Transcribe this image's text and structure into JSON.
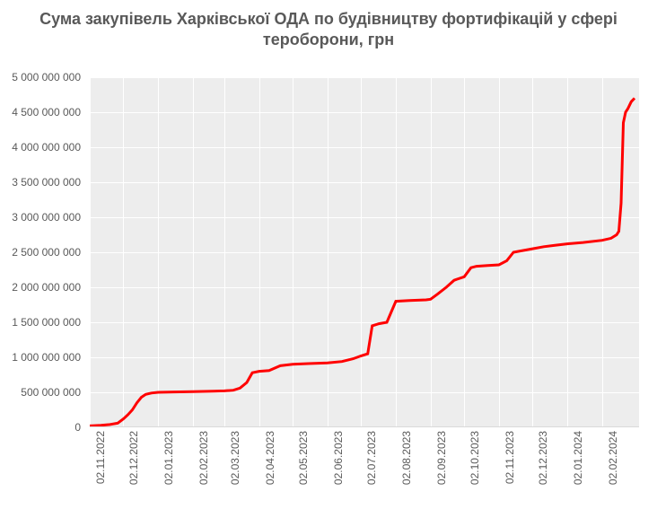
{
  "chart": {
    "type": "line",
    "title": "Сума закупівель Харківської ОДА по будівництву фортифікацій у сфері тероборони, грн",
    "title_fontsize": 18,
    "title_color": "#595959",
    "background_color": "#ffffff",
    "plot_background_color": "#ededed",
    "grid_color": "#ffffff",
    "axis_line_color": "#d9d9d9",
    "tick_label_color": "#595959",
    "tick_label_fontsize": 12,
    "ylim": [
      0,
      5000000000
    ],
    "ytick_step": 500000000,
    "y_ticks": [
      {
        "v": 0,
        "label": "0"
      },
      {
        "v": 500000000,
        "label": "500 000 000"
      },
      {
        "v": 1000000000,
        "label": "1 000 000 000"
      },
      {
        "v": 1500000000,
        "label": "1 500 000 000"
      },
      {
        "v": 2000000000,
        "label": "2 000 000 000"
      },
      {
        "v": 2500000000,
        "label": "2 500 000 000"
      },
      {
        "v": 3000000000,
        "label": "3 000 000 000"
      },
      {
        "v": 3500000000,
        "label": "3 500 000 000"
      },
      {
        "v": 4000000000,
        "label": "4 000 000 000"
      },
      {
        "v": 4500000000,
        "label": "4 500 000 000"
      },
      {
        "v": 5000000000,
        "label": "5 000 000 000"
      }
    ],
    "x_range_days": 490,
    "x_ticks": [
      {
        "pos": 0,
        "label": "02.11.2022"
      },
      {
        "pos": 30,
        "label": "02.12.2022"
      },
      {
        "pos": 61,
        "label": "02.01.2023"
      },
      {
        "pos": 92,
        "label": "02.02.2023"
      },
      {
        "pos": 120,
        "label": "02.03.2023"
      },
      {
        "pos": 151,
        "label": "02.04.2023"
      },
      {
        "pos": 181,
        "label": "02.05.2023"
      },
      {
        "pos": 212,
        "label": "02.06.2023"
      },
      {
        "pos": 242,
        "label": "02.07.2023"
      },
      {
        "pos": 273,
        "label": "02.08.2023"
      },
      {
        "pos": 304,
        "label": "02.09.2023"
      },
      {
        "pos": 334,
        "label": "02.10.2023"
      },
      {
        "pos": 365,
        "label": "02.11.2023"
      },
      {
        "pos": 395,
        "label": "02.12.2023"
      },
      {
        "pos": 426,
        "label": "02.01.2024"
      },
      {
        "pos": 457,
        "label": "02.02.2024"
      }
    ],
    "series": {
      "color": "#ff0000",
      "line_width": 3,
      "points": [
        {
          "x": 0,
          "y": 20000000
        },
        {
          "x": 10,
          "y": 30000000
        },
        {
          "x": 18,
          "y": 40000000
        },
        {
          "x": 25,
          "y": 60000000
        },
        {
          "x": 30,
          "y": 120000000
        },
        {
          "x": 34,
          "y": 180000000
        },
        {
          "x": 38,
          "y": 250000000
        },
        {
          "x": 42,
          "y": 350000000
        },
        {
          "x": 46,
          "y": 430000000
        },
        {
          "x": 50,
          "y": 470000000
        },
        {
          "x": 55,
          "y": 490000000
        },
        {
          "x": 61,
          "y": 500000000
        },
        {
          "x": 75,
          "y": 505000000
        },
        {
          "x": 92,
          "y": 510000000
        },
        {
          "x": 110,
          "y": 515000000
        },
        {
          "x": 120,
          "y": 520000000
        },
        {
          "x": 128,
          "y": 530000000
        },
        {
          "x": 134,
          "y": 560000000
        },
        {
          "x": 140,
          "y": 640000000
        },
        {
          "x": 145,
          "y": 780000000
        },
        {
          "x": 151,
          "y": 800000000
        },
        {
          "x": 160,
          "y": 810000000
        },
        {
          "x": 170,
          "y": 880000000
        },
        {
          "x": 181,
          "y": 900000000
        },
        {
          "x": 195,
          "y": 910000000
        },
        {
          "x": 212,
          "y": 920000000
        },
        {
          "x": 225,
          "y": 940000000
        },
        {
          "x": 235,
          "y": 980000000
        },
        {
          "x": 242,
          "y": 1020000000
        },
        {
          "x": 248,
          "y": 1050000000
        },
        {
          "x": 252,
          "y": 1450000000
        },
        {
          "x": 258,
          "y": 1480000000
        },
        {
          "x": 265,
          "y": 1500000000
        },
        {
          "x": 273,
          "y": 1800000000
        },
        {
          "x": 285,
          "y": 1810000000
        },
        {
          "x": 300,
          "y": 1820000000
        },
        {
          "x": 304,
          "y": 1830000000
        },
        {
          "x": 310,
          "y": 1900000000
        },
        {
          "x": 318,
          "y": 2000000000
        },
        {
          "x": 325,
          "y": 2100000000
        },
        {
          "x": 334,
          "y": 2150000000
        },
        {
          "x": 340,
          "y": 2280000000
        },
        {
          "x": 345,
          "y": 2300000000
        },
        {
          "x": 355,
          "y": 2310000000
        },
        {
          "x": 365,
          "y": 2320000000
        },
        {
          "x": 372,
          "y": 2380000000
        },
        {
          "x": 378,
          "y": 2500000000
        },
        {
          "x": 385,
          "y": 2520000000
        },
        {
          "x": 395,
          "y": 2550000000
        },
        {
          "x": 405,
          "y": 2580000000
        },
        {
          "x": 415,
          "y": 2600000000
        },
        {
          "x": 426,
          "y": 2620000000
        },
        {
          "x": 440,
          "y": 2640000000
        },
        {
          "x": 457,
          "y": 2670000000
        },
        {
          "x": 465,
          "y": 2700000000
        },
        {
          "x": 470,
          "y": 2750000000
        },
        {
          "x": 472,
          "y": 2800000000
        },
        {
          "x": 474,
          "y": 3200000000
        },
        {
          "x": 476,
          "y": 4350000000
        },
        {
          "x": 478,
          "y": 4500000000
        },
        {
          "x": 480,
          "y": 4550000000
        },
        {
          "x": 483,
          "y": 4650000000
        },
        {
          "x": 486,
          "y": 4700000000
        }
      ]
    }
  }
}
